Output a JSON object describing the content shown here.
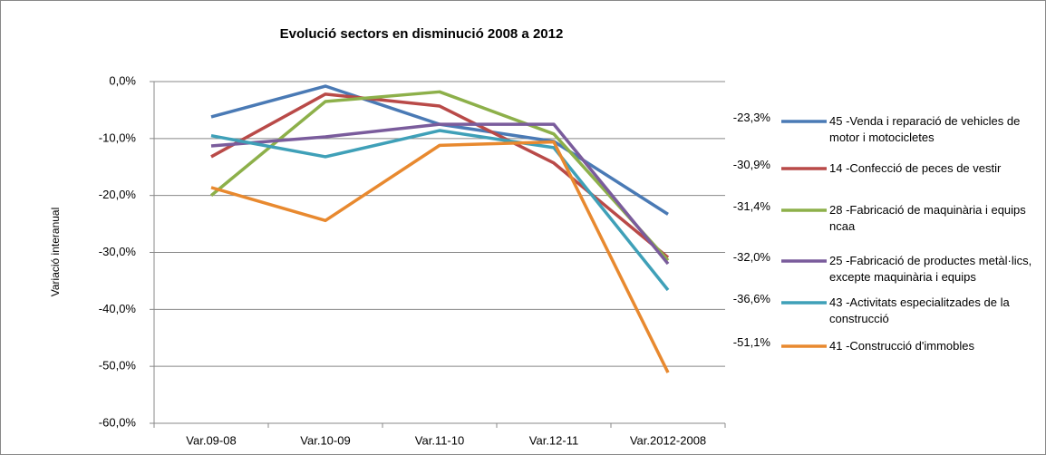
{
  "chart_data": {
    "type": "line",
    "title": "Evolució sectors  en disminució 2008 a 2012",
    "y_label": "Variació interanual",
    "categories": [
      "Var.09-08",
      "Var.10-09",
      "Var.11-10",
      "Var.12-11",
      "Var.2012-2008"
    ],
    "ylim": [
      -60,
      0
    ],
    "yticks": [
      {
        "value": -60,
        "label": "-60,0%"
      },
      {
        "value": -50,
        "label": "-50,0%"
      },
      {
        "value": -40,
        "label": "-40,0%"
      },
      {
        "value": -30,
        "label": "-30,0%"
      },
      {
        "value": -20,
        "label": "-20,0%"
      },
      {
        "value": -10,
        "label": "-10,0%"
      },
      {
        "value": 0,
        "label": "0,0%"
      }
    ],
    "grid": true,
    "legend": "right",
    "series": [
      {
        "name": "45 -Venda i reparació de vehicles de motor i motocicletes",
        "color": "#4a7ab5",
        "values": [
          -6.2,
          -0.8,
          -7.5,
          -10.5,
          -23.3
        ],
        "value_labels": [
          null,
          null,
          null,
          null,
          "-23,3%"
        ]
      },
      {
        "name": "14 -Confecció de peces de vestir",
        "color": "#b94a48",
        "values": [
          -13.2,
          -2.2,
          -4.3,
          -14.3,
          -30.9
        ],
        "value_labels": [
          null,
          null,
          null,
          null,
          "-30,9%"
        ]
      },
      {
        "name": "28 -Fabricació de maquinària i equips ncaa",
        "color": "#8db04a",
        "values": [
          -20.0,
          -3.5,
          -1.8,
          -9.2,
          -31.4
        ],
        "value_labels": [
          null,
          null,
          null,
          null,
          "-31,4%"
        ]
      },
      {
        "name": "25 -Fabricació de productes metàl·lics, excepte maquinària i equips",
        "color": "#7a5c9c",
        "values": [
          -11.3,
          -9.7,
          -7.5,
          -7.5,
          -32.0
        ],
        "value_labels": [
          null,
          null,
          null,
          null,
          "-32,0%"
        ]
      },
      {
        "name": "43 -Activitats especialitzades de la construcció",
        "color": "#3fa0b8",
        "values": [
          -9.5,
          -13.2,
          -8.6,
          -11.6,
          -36.6
        ],
        "value_labels": [
          null,
          null,
          null,
          null,
          "-36,6%"
        ]
      },
      {
        "name": "41 -Construcció d'immobles",
        "color": "#e8892f",
        "values": [
          -18.6,
          -24.4,
          -11.2,
          -10.6,
          -51.1
        ],
        "value_labels": [
          null,
          null,
          null,
          null,
          "-51,1%"
        ]
      }
    ]
  }
}
